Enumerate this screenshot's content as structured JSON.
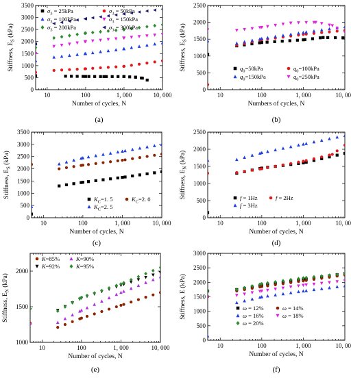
{
  "figure": {
    "panels": 6
  },
  "chart_data": [
    {
      "type": "scatter",
      "caption": "(a)",
      "xlabel": "Number of cycles, N",
      "ylabel": "Stiffness, E",
      "ylabel_sub": "S",
      "ylabel_unit": " (kPa)",
      "xscale": "log",
      "xlim": [
        5,
        10000
      ],
      "ylim": [
        0,
        3500
      ],
      "xticks": [
        10,
        100,
        1000,
        10000
      ],
      "xticklabels": [
        "10",
        "100",
        "1, 000",
        "10, 000"
      ],
      "yticks": [
        0,
        500,
        1000,
        1500,
        2000,
        2500,
        3000,
        3500
      ],
      "yticklabels": [
        "0",
        "500",
        "1000",
        "1500",
        "2000",
        "2500",
        "3000",
        "3500"
      ],
      "legend_placement": "top-left",
      "series": [
        {
          "name": "σ3 = 25kPa",
          "label_main": "σ",
          "label_sub": "3",
          "label_rest": " = 25kPa",
          "color": "#000000",
          "marker": "square",
          "x": [
            5,
            30,
            100,
            300,
            1000,
            2000,
            3000,
            4000
          ],
          "y": [
            580,
            560,
            550,
            545,
            545,
            520,
            480,
            400
          ]
        },
        {
          "name": "σ3 = 50kPa",
          "label_main": "σ",
          "label_sub": "3",
          "label_rest": " = 50kPa",
          "color": "#e31a1c",
          "marker": "circle",
          "x": [
            5,
            15,
            100,
            1000,
            10000
          ],
          "y": [
            720,
            800,
            870,
            970,
            1200
          ]
        },
        {
          "name": "σ3 = 100kPa",
          "label_main": "σ",
          "label_sub": "3",
          "label_rest": " = 100kPa",
          "color": "#1f3fe0",
          "marker": "triangle",
          "x": [
            5,
            15,
            100,
            1000,
            10000
          ],
          "y": [
            1200,
            1350,
            1500,
            1700,
            1950
          ]
        },
        {
          "name": "σ3 = 150kPa",
          "label_main": "σ",
          "label_sub": "3",
          "label_rest": " = 150kPa",
          "color": "#e020e0",
          "marker": "triangledown",
          "x": [
            5,
            15,
            100,
            1000,
            10000
          ],
          "y": [
            1500,
            1800,
            2000,
            2150,
            2300
          ]
        },
        {
          "name": "σ3 = 200kPa",
          "label_main": "σ",
          "label_sub": "3",
          "label_rest": " = 200kPa",
          "color": "#2e8b2e",
          "marker": "diamond",
          "x": [
            5,
            15,
            100,
            1000,
            10000
          ],
          "y": [
            1750,
            2150,
            2350,
            2500,
            2700
          ]
        },
        {
          "name": "σ3 = 300kPa",
          "label_main": "σ",
          "label_sub": "3",
          "label_rest": " = 300kPa",
          "color": "#1a1a6e",
          "marker": "triangleleft",
          "x": [
            5,
            15,
            100,
            1000,
            10000
          ],
          "y": [
            1900,
            2750,
            2950,
            3150,
            3350
          ]
        }
      ]
    },
    {
      "type": "scatter",
      "caption": "(b)",
      "xlabel": "Numbers of cycles, N",
      "ylabel": "Stiffness, E",
      "ylabel_sub": "S",
      "ylabel_unit": " (kPa)",
      "xscale": "log",
      "xlim": [
        5,
        10000
      ],
      "ylim": [
        0,
        2500
      ],
      "xticks": [
        10,
        100,
        1000,
        10000
      ],
      "xticklabels": [
        "10",
        "100",
        "1, 000",
        "10, 000"
      ],
      "yticks": [
        0,
        500,
        1000,
        1500,
        2000,
        2500
      ],
      "yticklabels": [
        "0",
        "500",
        "1000",
        "1500",
        "2000",
        "2500"
      ],
      "legend_placement": "bottom-right",
      "series": [
        {
          "name": "q0=50kPa",
          "label_main": "q",
          "label_sub": "0",
          "label_rest": "=50kPa",
          "color": "#000000",
          "marker": "square",
          "x": [
            5,
            25,
            100,
            1000,
            3000,
            9000
          ],
          "y": [
            1050,
            1300,
            1400,
            1480,
            1550,
            1540
          ]
        },
        {
          "name": "q0=100kPa",
          "label_main": "q",
          "label_sub": "0",
          "label_rest": "=100kPa",
          "color": "#e31a1c",
          "marker": "circle",
          "x": [
            5,
            25,
            100,
            1000,
            10000
          ],
          "y": [
            150,
            1320,
            1480,
            1640,
            1760
          ]
        },
        {
          "name": "q0=150kPa",
          "label_main": "q",
          "label_sub": "0",
          "label_rest": "=150kPa",
          "color": "#1f3fe0",
          "marker": "triangle",
          "x": [
            5,
            25,
            100,
            1000,
            10000
          ],
          "y": [
            1450,
            1380,
            1520,
            1700,
            1870
          ]
        },
        {
          "name": "q0=250kPa",
          "label_main": "q",
          "label_sub": "0",
          "label_rest": "=250kPa",
          "color": "#e020e0",
          "marker": "triangledown",
          "x": [
            5,
            25,
            100,
            500,
            2000,
            5000,
            10000
          ],
          "y": [
            1780,
            1760,
            1850,
            1980,
            2000,
            1900,
            1700
          ]
        }
      ]
    },
    {
      "type": "scatter",
      "caption": "(c)",
      "xlabel": "Number of cycles, N",
      "ylabel": "Stiffness, E",
      "ylabel_sub": "S",
      "ylabel_unit": " (kPa)",
      "xscale": "log",
      "xlim": [
        5,
        10000
      ],
      "ylim": [
        0,
        3500
      ],
      "xticks": [
        10,
        100,
        1000,
        10000
      ],
      "xticklabels": [
        "10",
        "100",
        "1, 000",
        "10, 000"
      ],
      "yticks": [
        0,
        500,
        1000,
        1500,
        2000,
        2500,
        3000,
        3500
      ],
      "yticklabels": [
        "0",
        "500",
        "1000",
        "1500",
        "2000",
        "2500",
        "3000",
        "3500"
      ],
      "legend_placement": "bottom-right",
      "series": [
        {
          "name": "Kc=1.5",
          "label_main": "K",
          "label_sub": "C",
          "label_rest": "=1. 5",
          "color": "#000000",
          "marker": "square",
          "x": [
            5,
            25,
            100,
            1000,
            10000
          ],
          "y": [
            150,
            1300,
            1450,
            1650,
            1880
          ]
        },
        {
          "name": "Kc=2.0",
          "label_main": "K",
          "label_sub": "C",
          "label_rest": "=2. 0",
          "color": "#8b2500",
          "marker": "circle",
          "x": [
            5,
            25,
            100,
            1000,
            10000
          ],
          "y": [
            2180,
            2000,
            2150,
            2350,
            2600
          ]
        },
        {
          "name": "Kc=2.5",
          "label_main": "K",
          "label_sub": "C",
          "label_rest": "=2. 5",
          "color": "#1f3fe0",
          "marker": "triangle",
          "x": [
            5,
            25,
            100,
            1000,
            10000
          ],
          "y": [
            450,
            2200,
            2450,
            2720,
            3000
          ]
        }
      ]
    },
    {
      "type": "scatter",
      "caption": "(d)",
      "xlabel": "Number of cycles, N",
      "ylabel": "Stiffness, E",
      "ylabel_sub": "N",
      "ylabel_unit": " (kPa)",
      "xscale": "log",
      "xlim": [
        5,
        10000
      ],
      "ylim": [
        0,
        2500
      ],
      "xticks": [
        10,
        100,
        1000,
        10000
      ],
      "xticklabels": [
        "10",
        "100",
        "1, 000",
        "10, 000"
      ],
      "yticks": [
        0,
        500,
        1000,
        1500,
        2000,
        2500
      ],
      "yticklabels": [
        "0",
        "500",
        "1000",
        "1500",
        "2000",
        "2500"
      ],
      "legend_placement": "bottom-left",
      "series": [
        {
          "name": "f = 1Hz",
          "label_main": "f",
          "label_sub": "",
          "label_rest": " = 1Hz",
          "color": "#000000",
          "marker": "square",
          "x": [
            5,
            25,
            100,
            1000,
            10000
          ],
          "y": [
            150,
            1300,
            1450,
            1600,
            1880
          ]
        },
        {
          "name": "f = 2Hz",
          "label_main": "f",
          "label_sub": "",
          "label_rest": " = 2Hz",
          "color": "#e31a1c",
          "marker": "circle",
          "x": [
            5,
            25,
            100,
            1000,
            5000,
            10000
          ],
          "y": [
            1300,
            1320,
            1430,
            1650,
            1850,
            2120
          ]
        },
        {
          "name": "f = 3Hz",
          "label_main": "f",
          "label_sub": "",
          "label_rest": " = 3Hz",
          "color": "#1f3fe0",
          "marker": "triangle",
          "x": [
            5,
            25,
            100,
            1000,
            10000
          ],
          "y": [
            1680,
            1700,
            1900,
            2150,
            2400
          ]
        }
      ]
    },
    {
      "type": "scatter",
      "caption": "(e)",
      "xlabel": "Number of cycles, N",
      "ylabel": "Stiffness, E",
      "ylabel_sub": "N",
      "ylabel_unit": " (kPa)",
      "xscale": "log",
      "xlim": [
        5,
        10000
      ],
      "ylim": [
        1000,
        2250
      ],
      "xticks": [
        10,
        100,
        1000,
        10000
      ],
      "xticklabels": [
        "10",
        "100",
        "1, 000",
        "10, 000"
      ],
      "yticks": [
        1000,
        1500,
        2000
      ],
      "yticklabels": [
        "1000",
        "1500",
        "2000"
      ],
      "legend_placement": "top-left",
      "series": [
        {
          "name": "K=85%",
          "label_main": "K",
          "label_sub": "",
          "label_rest": "=85%",
          "color": "#8b2500",
          "marker": "circle",
          "x": [
            5,
            25,
            100,
            1000,
            10000
          ],
          "y": [
            1270,
            1210,
            1340,
            1520,
            1700
          ]
        },
        {
          "name": "K=90%",
          "label_main": "K",
          "label_sub": "",
          "label_rest": "=90%",
          "color": "#b030e0",
          "marker": "triangle",
          "x": [
            5,
            25,
            100,
            1000,
            10000
          ],
          "y": [
            1260,
            1280,
            1450,
            1700,
            1920
          ]
        },
        {
          "name": "K=92%",
          "label_main": "K",
          "label_sub": "",
          "label_rest": "=92%",
          "color": "#000000",
          "marker": "triangledown",
          "x": [
            5,
            25,
            100,
            1000,
            10000
          ],
          "y": [
            1460,
            1450,
            1620,
            1800,
            1980
          ]
        },
        {
          "name": "K=95%",
          "label_main": "K",
          "label_sub": "",
          "label_rest": "=95%",
          "color": "#2e8b2e",
          "marker": "diamond",
          "x": [
            5,
            25,
            100,
            1000,
            10000
          ],
          "y": [
            1470,
            1440,
            1630,
            1820,
            2050
          ]
        }
      ]
    },
    {
      "type": "scatter",
      "caption": "(f)",
      "xlabel": "Number of cycles, N",
      "ylabel": "Stiffness, E",
      "ylabel_sub": "",
      "ylabel_unit": " (kPa)",
      "xscale": "log",
      "xlim": [
        5,
        10000
      ],
      "ylim": [
        0,
        3000
      ],
      "xticks": [
        10,
        100,
        1000,
        10000
      ],
      "xticklabels": [
        "10",
        "100",
        "1, 000",
        "10, 000"
      ],
      "yticks": [
        0,
        500,
        1000,
        1500,
        2000,
        2500,
        3000
      ],
      "yticklabels": [
        "0",
        "500",
        "1000",
        "1500",
        "2000",
        "2500",
        "3000"
      ],
      "legend_placement": "bottom-left",
      "series": [
        {
          "name": "ω = 12%",
          "label_main": "ω",
          "label_sub": "",
          "label_rest": " = 12%",
          "color": "#000000",
          "marker": "square",
          "x": [
            5,
            25,
            100,
            1000,
            10000
          ],
          "y": [
            1700,
            1750,
            1900,
            2100,
            2300
          ]
        },
        {
          "name": "ω = 14%",
          "label_main": "ω",
          "label_sub": "",
          "label_rest": " = 14%",
          "color": "#8b2500",
          "marker": "circle",
          "x": [
            5,
            25,
            100,
            1000,
            10000
          ],
          "y": [
            1500,
            1700,
            1850,
            2050,
            2250
          ]
        },
        {
          "name": "ω = 16%",
          "label_main": "ω",
          "label_sub": "",
          "label_rest": " = 16%",
          "color": "#1f3fe0",
          "marker": "triangle",
          "x": [
            5,
            25,
            100,
            1000,
            10000
          ],
          "y": [
            150,
            1300,
            1500,
            1700,
            1880
          ]
        },
        {
          "name": "ω = 18%",
          "label_main": "ω",
          "label_sub": "",
          "label_rest": " = 18%",
          "color": "#e020e0",
          "marker": "triangledown",
          "x": [
            5,
            25,
            100,
            1000,
            10000
          ],
          "y": [
            1500,
            1550,
            1700,
            1900,
            2050
          ]
        },
        {
          "name": "ω = 20%",
          "label_main": "ω",
          "label_sub": "",
          "label_rest": " = 20%",
          "color": "#2e8b2e",
          "marker": "diamond",
          "x": [
            5,
            25,
            100,
            1000,
            10000
          ],
          "y": [
            1700,
            1750,
            1950,
            2150,
            2300
          ]
        }
      ]
    }
  ]
}
